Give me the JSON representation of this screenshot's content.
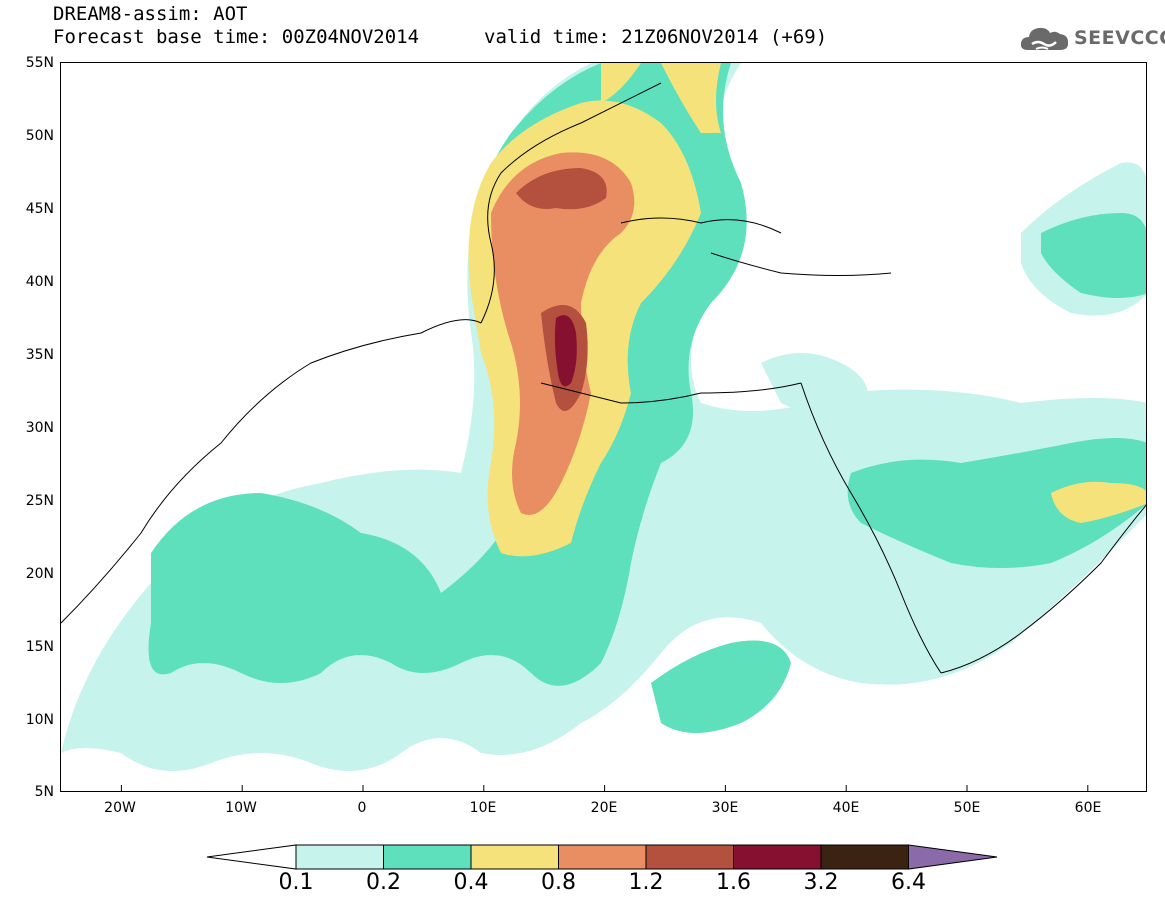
{
  "header": {
    "title_line1": "DREAM8-assim: AOT",
    "title_line2": "Forecast base time: 00Z04NOV2014",
    "valid_time": "valid time: 21Z06NOV2014 (+69)"
  },
  "logo": {
    "text": "SEEVCCC",
    "icon": "cloud-icon"
  },
  "map": {
    "lat_labels": [
      "55N",
      "50N",
      "45N",
      "40N",
      "35N",
      "30N",
      "25N",
      "20N",
      "15N",
      "10N",
      "5N"
    ],
    "lon_labels": [
      "20W",
      "10W",
      "0",
      "10E",
      "20E",
      "30E",
      "40E",
      "50E",
      "60E"
    ],
    "lat_range": [
      5,
      55
    ],
    "lon_range": [
      -25,
      65
    ]
  },
  "colorbar": {
    "ticks": [
      "0.1",
      "0.2",
      "0.4",
      "0.8",
      "1.2",
      "1.6",
      "3.2",
      "6.4"
    ],
    "colors": [
      "#c6f3ec",
      "#5de0bb",
      "#f5e27a",
      "#e98e63",
      "#b4503e",
      "#85102f",
      "#3b2314",
      "#8a6aa8"
    ],
    "under_color": "#ffffff"
  }
}
